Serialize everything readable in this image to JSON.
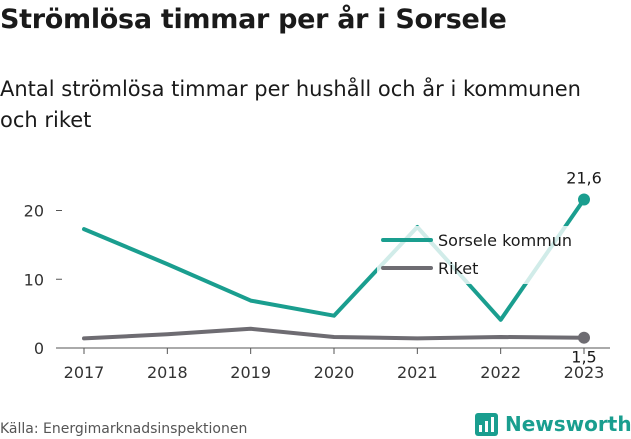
{
  "header": {
    "title": "Strömlösa timmar per år i Sorsele",
    "subtitle": "Antal strömlösa timmar per hushåll och år i kommunen och riket"
  },
  "footer": {
    "source": "Källa: Energimarknadsinspektionen",
    "brand": "Newsworthy",
    "brand_icon": "newsworthy-logo-icon"
  },
  "colors": {
    "primary": "#1a9e8f",
    "secondary": "#6e6c72",
    "axis": "#555555"
  },
  "chart_data": {
    "type": "line",
    "title": "Strömlösa timmar per år i Sorsele",
    "subtitle": "Antal strömlösa timmar per hushåll och år i kommunen och riket",
    "xlabel": "",
    "ylabel": "",
    "x": [
      2017,
      2018,
      2019,
      2020,
      2021,
      2022,
      2023
    ],
    "ylim": [
      0,
      24
    ],
    "yticks": [
      0,
      10,
      20
    ],
    "grid": false,
    "legend": "right",
    "series": [
      {
        "name": "Sorsele kommun",
        "color": "#1a9e8f",
        "values": [
          17.3,
          12.2,
          6.9,
          4.7,
          17.6,
          4.1,
          21.6
        ],
        "end_label": "21,6"
      },
      {
        "name": "Riket",
        "color": "#6e6c72",
        "values": [
          1.4,
          2.0,
          2.8,
          1.6,
          1.4,
          1.6,
          1.5
        ],
        "end_label": "1,5"
      }
    ]
  }
}
